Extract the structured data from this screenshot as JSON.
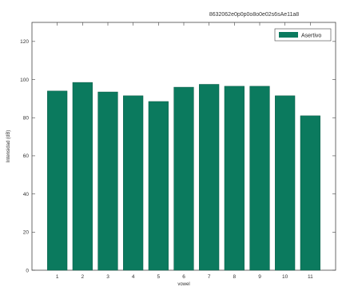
{
  "chart_data": {
    "type": "bar",
    "title": "8632062e0p0p0o8o0e02s6sAe11a8",
    "xlabel": "vowel",
    "ylabel": "Intensidad (dB)",
    "categories": [
      "1",
      "2",
      "3",
      "4",
      "5",
      "6",
      "7",
      "8",
      "9",
      "10",
      "11"
    ],
    "series": [
      {
        "name": "Asertivo",
        "values": [
          94,
          98.5,
          93.5,
          91.5,
          88.5,
          96,
          97.5,
          96.5,
          96.5,
          91.5,
          81
        ],
        "color": "#0b7a5e"
      }
    ],
    "ylim": [
      0,
      130
    ],
    "yticks": [
      "0",
      "20",
      "40",
      "60",
      "80",
      "100",
      "120"
    ],
    "grid": false,
    "legend_position": "top-right"
  }
}
